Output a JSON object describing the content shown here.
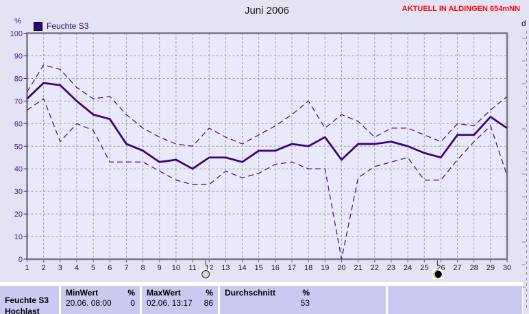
{
  "header": {
    "alert": "AKTUELL IN ALDINGEN 654mNN",
    "adjacent_panel_label": "d"
  },
  "legend": {
    "series_label": "Feuchte S3"
  },
  "chart_data": {
    "type": "line",
    "title": "Juni 2006",
    "ylabel": "%",
    "xlabel": "",
    "ylim": [
      0,
      100
    ],
    "ytick_step": 10,
    "grid": true,
    "legend_position": "top-left",
    "x": [
      1,
      2,
      3,
      4,
      5,
      6,
      7,
      8,
      9,
      10,
      11,
      12,
      13,
      14,
      15,
      16,
      17,
      18,
      19,
      20,
      21,
      22,
      23,
      24,
      25,
      26,
      27,
      28,
      29,
      30
    ],
    "series": [
      {
        "name": "Feuchte S3",
        "line": "solid",
        "values": [
          71,
          78,
          77,
          70,
          64,
          62,
          51,
          48,
          43,
          44,
          40,
          45,
          45,
          43,
          48,
          48,
          51,
          50,
          54,
          44,
          51,
          51,
          52,
          50,
          47,
          45,
          55,
          55,
          63,
          58
        ]
      },
      {
        "name": "MaxWert",
        "line": "dashed",
        "values": [
          74,
          86,
          84,
          76,
          71,
          72,
          64,
          58,
          54,
          51,
          50,
          58,
          54,
          51,
          55,
          59,
          64,
          70,
          58,
          64,
          61,
          54,
          58,
          58,
          55,
          52,
          60,
          59,
          66,
          72
        ]
      },
      {
        "name": "MinWert",
        "line": "dashed",
        "values": [
          66,
          71,
          52,
          60,
          57,
          43,
          43,
          43,
          39,
          35,
          33,
          33,
          39,
          36,
          38,
          42,
          43,
          40,
          40,
          0,
          36,
          41,
          43,
          45,
          35,
          35,
          44,
          52,
          59,
          37
        ]
      }
    ],
    "moon_markers": [
      {
        "x": 12,
        "phase": "full-moon"
      },
      {
        "x": 26,
        "phase": "new-moon"
      }
    ],
    "colors": {
      "solid": "#3a0579",
      "dashed": "#55119b",
      "grid": "#98989f",
      "frame": "#7b7b84",
      "axis_text": "#47168f",
      "day_text": "#1a1a1a"
    }
  },
  "table": {
    "sensor": {
      "line1": "Feuchte S3",
      "line2": "Hochlast"
    },
    "min": {
      "label": "MinWert",
      "unit": "%",
      "timestamp": "20.06. 08:00",
      "value": "0"
    },
    "max": {
      "label": "MaxWert",
      "unit": "%",
      "timestamp": "02.06. 13:17",
      "value": "86"
    },
    "avg": {
      "label": "Durchschnitt",
      "unit": "%",
      "value": "53"
    }
  }
}
